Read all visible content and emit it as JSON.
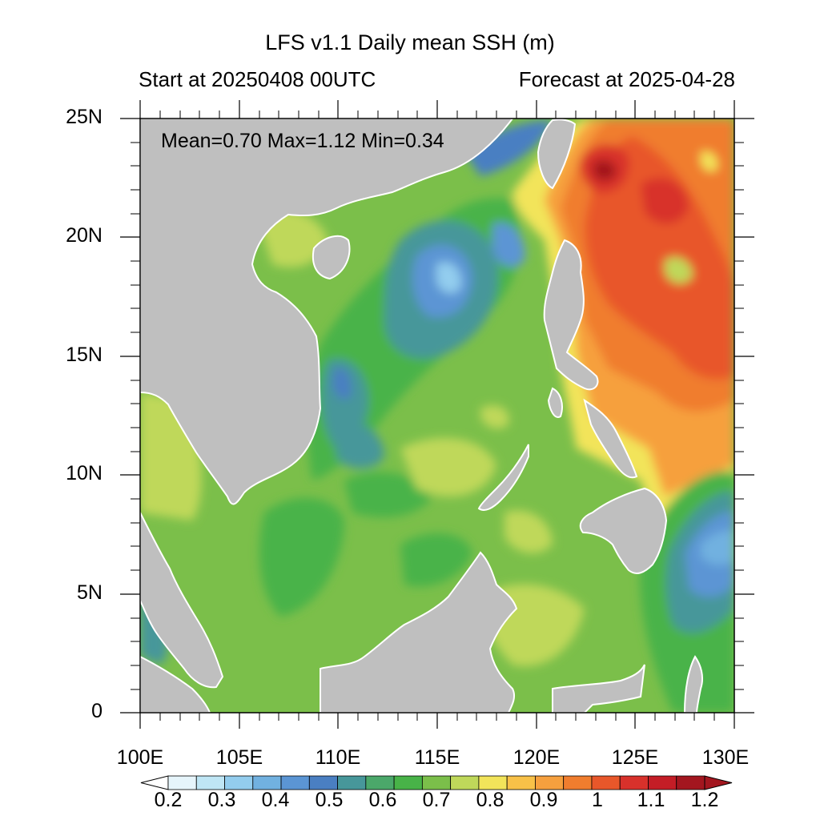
{
  "title": "LFS v1.1 Daily mean SSH (m)",
  "subtitle_left": "Start at 20250408 00UTC",
  "subtitle_right": "Forecast at 2025-04-28",
  "stats": "Mean=0.70  Max=1.12  Min=0.34",
  "map": {
    "lon_range": [
      100,
      130
    ],
    "lat_range": [
      0,
      25
    ],
    "lon_labels": [
      "100E",
      "105E",
      "110E",
      "115E",
      "120E",
      "125E",
      "130E"
    ],
    "lat_labels": [
      "25N",
      "20N",
      "15N",
      "10N",
      "5N",
      "0"
    ],
    "variable": "Daily mean sea surface height",
    "units": "m"
  },
  "colorbar": {
    "labels": [
      "0.2",
      "0.3",
      "0.4",
      "0.5",
      "0.6",
      "0.7",
      "0.8",
      "0.9",
      "1",
      "1.1",
      "1.2"
    ],
    "colors": [
      "#e6f5fb",
      "#bfe6f5",
      "#93cdee",
      "#71b1e0",
      "#5b95d4",
      "#4a7fc2",
      "#47979a",
      "#4ba86a",
      "#48b348",
      "#7bbf4a",
      "#bfd85a",
      "#f2e45a",
      "#f8c148",
      "#f6a03e",
      "#f07d2e",
      "#e8572a",
      "#d8312b",
      "#c41d26",
      "#a3161f"
    ],
    "under_color": "#ffffff",
    "over_color": "#a3161f"
  },
  "colors": {
    "land": "#bfbfbf",
    "background_field": "#7bbf4a",
    "frame": "#000000"
  }
}
